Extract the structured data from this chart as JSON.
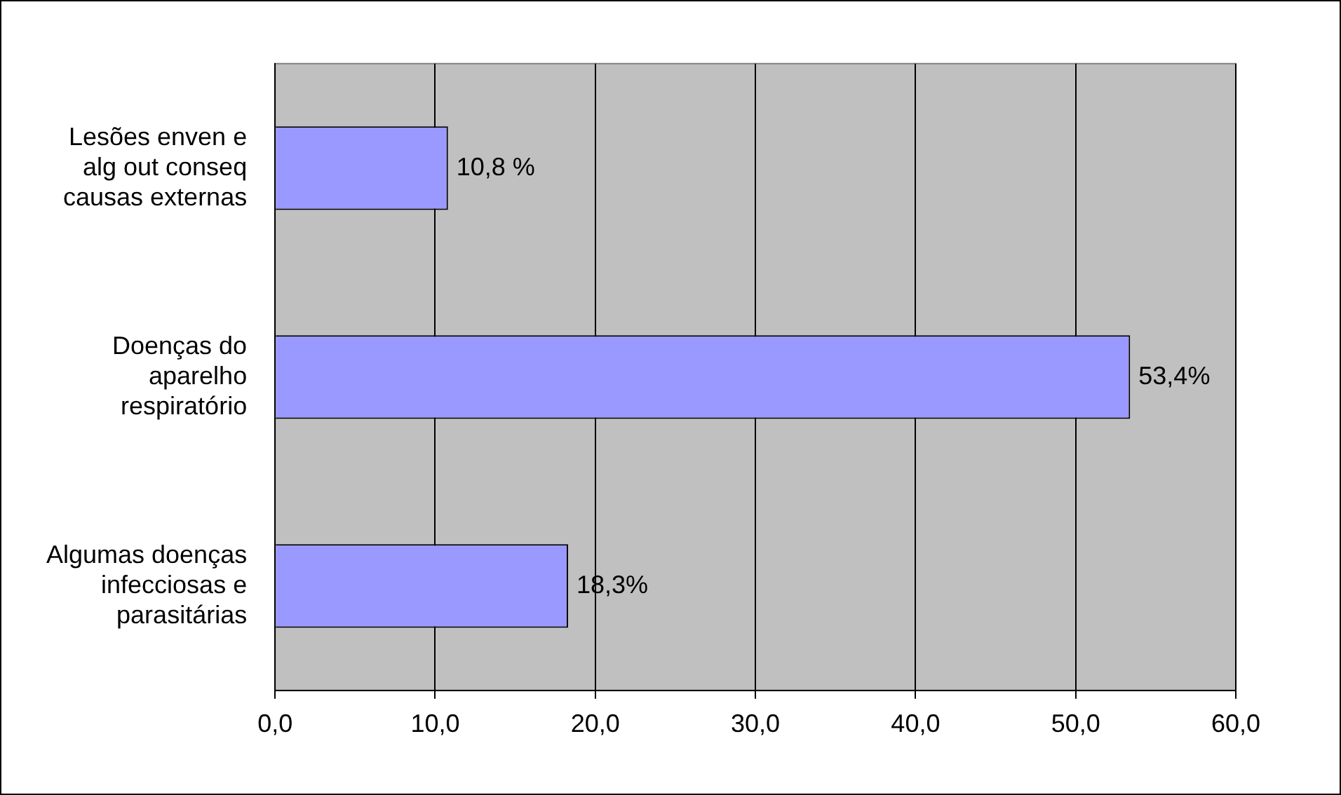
{
  "chart_data": {
    "type": "bar",
    "orientation": "horizontal",
    "categories": [
      "Lesões enven e alg out conseq causas externas",
      "Doenças do aparelho respiratório",
      "Algumas doenças infecciosas e parasitárias"
    ],
    "values": [
      10.8,
      53.4,
      18.3
    ],
    "value_labels": [
      "10,8 %",
      "53,4%",
      "18,3%"
    ],
    "color": "#9999ff",
    "xlim": [
      0,
      60
    ],
    "xticks": [
      {
        "value": 0,
        "label": "0,0"
      },
      {
        "value": 10,
        "label": "10,0"
      },
      {
        "value": 20,
        "label": "20,0"
      },
      {
        "value": 30,
        "label": "30,0"
      },
      {
        "value": 40,
        "label": "40,0"
      },
      {
        "value": 50,
        "label": "50,0"
      },
      {
        "value": 60,
        "label": "60,0"
      }
    ],
    "grid": "x"
  }
}
